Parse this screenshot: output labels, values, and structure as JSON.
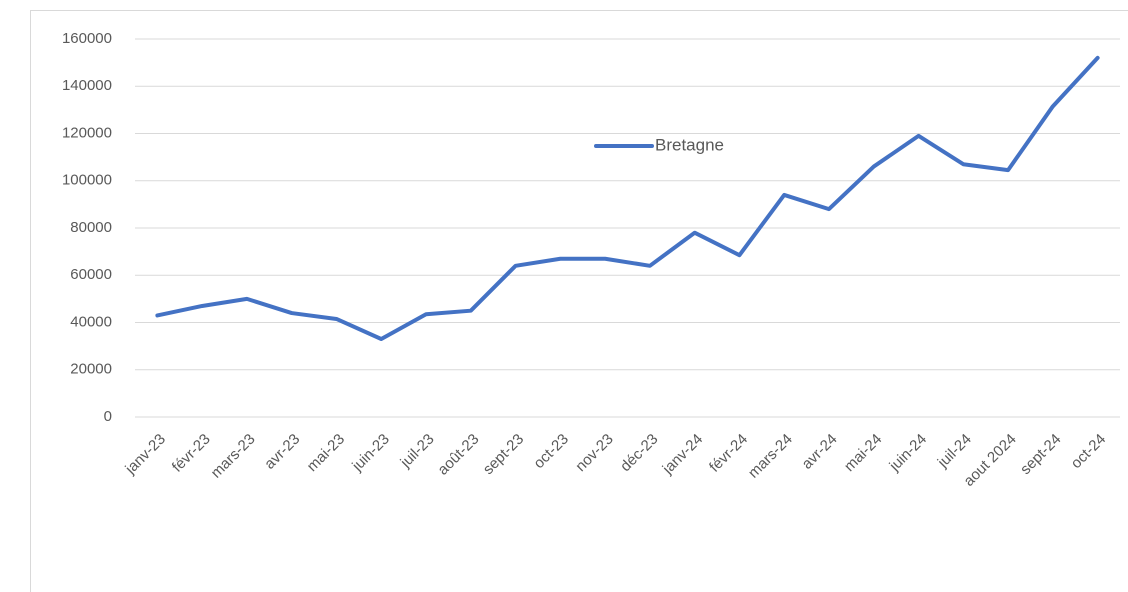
{
  "chart_data": {
    "type": "line",
    "categories": [
      "janv-23",
      "févr-23",
      "mars-23",
      "avr-23",
      "mai-23",
      "juin-23",
      "juil-23",
      "août-23",
      "sept-23",
      "oct-23",
      "nov-23",
      "déc-23",
      "janv-24",
      "févr-24",
      "mars-24",
      "avr-24",
      "mai-24",
      "juin-24",
      "juil-24",
      "aout 2024",
      "sept-24",
      "oct-24"
    ],
    "series": [
      {
        "name": "Bretagne",
        "color": "#4472c4",
        "values": [
          43000,
          47000,
          50000,
          44000,
          41500,
          33000,
          43500,
          45000,
          64000,
          67000,
          67000,
          64000,
          78000,
          68500,
          94000,
          88000,
          106000,
          119000,
          107000,
          104500,
          131500,
          152000
        ]
      }
    ],
    "ylim": [
      0,
      160000
    ],
    "yticks": [
      0,
      20000,
      40000,
      60000,
      80000,
      100000,
      120000,
      140000,
      160000
    ],
    "grid": true,
    "legend": "top"
  }
}
